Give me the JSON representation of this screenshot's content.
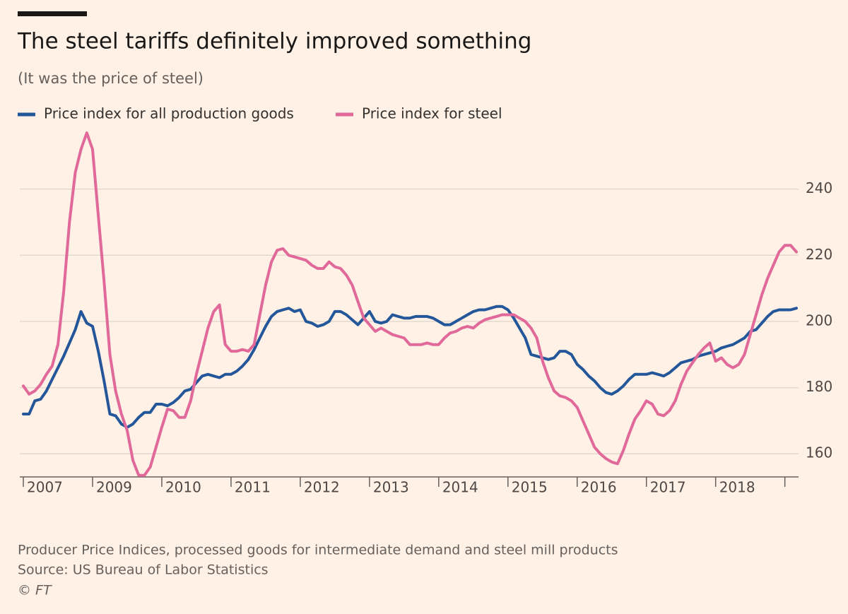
{
  "chart_data": {
    "type": "line",
    "title": "The steel tariffs definitely improved something",
    "subtitle": "(It was the price of steel)",
    "notes": [
      "Producer Price Indices, processed goods for intermediate demand and steel mill products",
      "Source: US Bureau of Labor Statistics"
    ],
    "credit": "© FT",
    "categories": [
      "2007",
      null,
      null,
      null,
      null,
      null,
      null,
      null,
      null,
      null,
      null,
      null,
      "2009",
      null,
      null,
      null,
      null,
      null,
      null,
      null,
      null,
      null,
      null,
      null,
      "2010",
      null,
      null,
      null,
      null,
      null,
      null,
      null,
      null,
      null,
      null,
      null,
      "2011",
      null,
      null,
      null,
      null,
      null,
      null,
      null,
      null,
      null,
      null,
      null,
      "2012",
      null,
      null,
      null,
      null,
      null,
      null,
      null,
      null,
      null,
      null,
      null,
      "2013",
      null,
      null,
      null,
      null,
      null,
      null,
      null,
      null,
      null,
      null,
      null,
      "2014",
      null,
      null,
      null,
      null,
      null,
      null,
      null,
      null,
      null,
      null,
      null,
      "2015",
      null,
      null,
      null,
      null,
      null,
      null,
      null,
      null,
      null,
      null,
      null,
      "2016",
      null,
      null,
      null,
      null,
      null,
      null,
      null,
      null,
      null,
      null,
      null,
      "2017",
      null,
      null,
      null,
      null,
      null,
      null,
      null,
      null,
      null,
      null,
      null,
      "2018",
      null,
      null,
      null,
      null,
      null,
      null,
      null,
      null,
      null,
      null,
      null,
      null,
      null,
      null
    ],
    "series": [
      {
        "name": "Price index for all production goods",
        "color": "#24569a",
        "values": [
          172,
          172,
          176,
          176.5,
          179,
          182.5,
          186,
          189.5,
          193.5,
          197.5,
          203,
          199.5,
          198.5,
          191,
          182,
          172,
          171.5,
          169,
          168,
          169,
          171,
          172.5,
          172.5,
          175,
          175,
          174.5,
          175.5,
          177,
          179,
          179.5,
          181.5,
          183.5,
          184,
          183.5,
          183,
          184,
          184,
          185,
          186.5,
          188.5,
          191.5,
          195,
          198.5,
          201.5,
          203,
          203.5,
          204,
          203,
          203.5,
          200,
          199.5,
          198.5,
          199,
          200,
          203,
          203,
          202,
          200.5,
          199,
          201,
          203,
          200,
          199.5,
          200,
          202,
          201.5,
          201,
          201,
          201.5,
          201.5,
          201.5,
          201,
          200,
          199,
          199,
          200,
          201,
          202,
          203,
          203.5,
          203.5,
          204,
          204.5,
          204.5,
          203.5,
          201,
          198,
          195,
          190,
          189.5,
          189,
          188.5,
          189,
          191,
          191,
          190,
          187,
          185.5,
          183.5,
          182,
          180,
          178.5,
          178,
          179,
          180.5,
          182.5,
          184,
          184,
          184,
          184.5,
          184,
          183.5,
          184.5,
          186,
          187.5,
          188,
          188.5,
          189.5,
          190,
          190.5,
          191,
          192,
          192.5,
          193,
          194,
          195,
          197,
          197.5,
          199.5,
          201.5,
          203,
          203.5,
          203.5,
          203.5,
          204
        ]
      },
      {
        "name": "Price index for steel",
        "color": "#e1699a",
        "values": [
          180.5,
          178,
          179,
          181,
          184,
          186.5,
          193,
          209,
          230,
          245,
          252,
          257,
          252,
          232,
          212,
          190,
          179,
          172,
          167,
          158,
          153.5,
          153.5,
          156,
          162,
          168,
          173.5,
          173,
          171,
          171,
          176,
          184,
          191,
          198,
          203,
          205,
          193,
          191,
          191,
          191.5,
          191,
          193,
          202,
          211,
          218,
          221.5,
          222,
          220,
          219.5,
          219,
          218.5,
          217,
          216,
          216,
          218,
          216.5,
          216,
          214,
          211,
          206,
          201,
          199,
          197,
          198,
          197,
          196,
          195.5,
          195,
          193,
          193,
          193,
          193.5,
          193,
          193,
          195,
          196.5,
          197,
          198,
          198.5,
          198,
          199.5,
          200.5,
          201,
          201.5,
          202,
          202,
          202,
          201,
          200,
          198,
          195,
          188,
          183,
          179,
          177.5,
          177,
          176,
          174,
          170,
          166,
          162,
          160,
          158.5,
          157.5,
          157,
          161,
          166,
          170.5,
          173,
          176,
          175,
          172,
          171.5,
          173,
          176,
          181,
          185,
          187.5,
          190,
          192,
          193.5,
          188,
          189,
          187,
          186,
          187,
          190,
          196,
          202,
          208,
          213,
          217,
          221,
          223,
          223,
          221
        ]
      }
    ],
    "ylim": [
      153,
      257
    ],
    "yticks": [
      160,
      180,
      200,
      220,
      240
    ],
    "grid": true,
    "legend": "top-left"
  }
}
